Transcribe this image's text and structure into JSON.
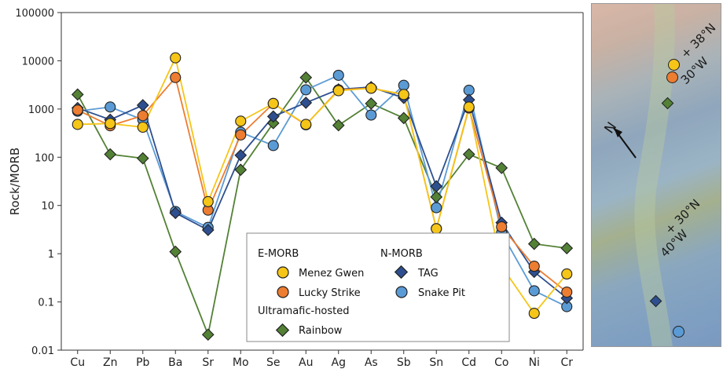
{
  "chart_data": {
    "type": "line",
    "ylabel": "Rock/MORB",
    "yscale": "log",
    "ylim": [
      0.01,
      100000
    ],
    "yticks": [
      "0.01",
      "0.1",
      "1",
      "10",
      "100",
      "1000",
      "10000",
      "100000"
    ],
    "categories": [
      "Cu",
      "Zn",
      "Pb",
      "Ba",
      "Sr",
      "Mo",
      "Se",
      "Au",
      "Ag",
      "As",
      "Sb",
      "Sn",
      "Cd",
      "Co",
      "Ni",
      "Cr"
    ],
    "grid": false,
    "legend": {
      "groups": [
        {
          "title": "E-MORB",
          "entries": [
            "Menez Gwen",
            "Lucky Strike"
          ]
        },
        {
          "title": "N-MORB",
          "entries": [
            "TAG",
            "Snake Pit"
          ]
        },
        {
          "title": "Ultramafic-hosted",
          "entries": [
            "Rainbow"
          ]
        }
      ],
      "placement": "bottom-center"
    },
    "series": [
      {
        "name": "Menez Gwen",
        "marker": "circle",
        "color": "#f5c518",
        "values": [
          480,
          500,
          420,
          11500,
          12,
          560,
          1300,
          480,
          2400,
          2700,
          2000,
          3.3,
          1100,
          0.55,
          0.058,
          0.38
        ]
      },
      {
        "name": "Lucky Strike",
        "marker": "circle",
        "color": "#ed7d31",
        "values": [
          950,
          450,
          730,
          4500,
          8,
          290,
          1300,
          470,
          2500,
          2700,
          2000,
          3.3,
          1050,
          3.6,
          0.55,
          0.16
        ]
      },
      {
        "name": "TAG",
        "marker": "diamond",
        "color": "#2e4f8f",
        "values": [
          1050,
          600,
          1200,
          7,
          3.1,
          110,
          700,
          1350,
          2550,
          2850,
          1700,
          25,
          1550,
          4.4,
          0.42,
          0.12
        ]
      },
      {
        "name": "Snake Pit",
        "marker": "circle",
        "color": "#5b9bd5",
        "values": [
          900,
          1100,
          600,
          7.5,
          3.5,
          330,
          175,
          2500,
          5000,
          750,
          3100,
          9,
          2450,
          2.7,
          0.17,
          0.08
        ]
      },
      {
        "name": "Rainbow",
        "marker": "diamond",
        "color": "#538135",
        "values": [
          2000,
          115,
          95,
          1.1,
          0.021,
          55,
          510,
          4500,
          460,
          1300,
          650,
          15,
          115,
          60,
          1.6,
          1.3
        ]
      }
    ]
  },
  "map": {
    "labels": {
      "north_arrow": "N",
      "point_a_lat": "38°N",
      "point_a_lon": "30°W",
      "point_b_lat": "30°N",
      "point_b_lon": "40°W"
    },
    "marker_colors": {
      "menez_gwen": "#f5c518",
      "lucky_strike": "#ed7d31",
      "rainbow": "#538135",
      "tag": "#2e4f8f",
      "snake_pit": "#5b9bd5"
    }
  }
}
